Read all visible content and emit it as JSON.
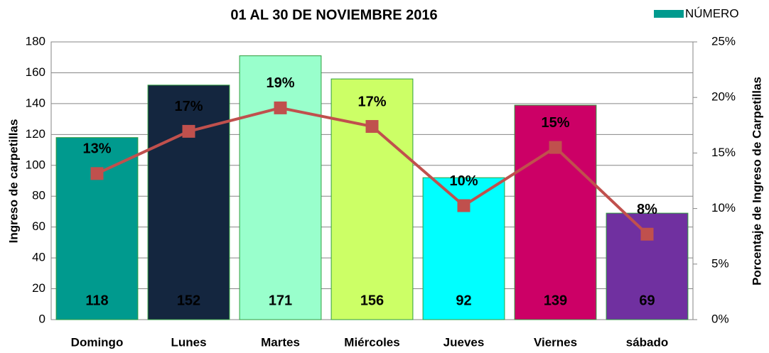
{
  "chart_data": {
    "type": "bar",
    "title": "01 AL 30 DE NOVIEMBRE 2016",
    "ylabel": "Ingreso de carpetillas",
    "y2label": "Porcentaje de Ingreso de Carpetillas",
    "categories": [
      "Domingo",
      "Lunes",
      "Martes",
      "Miércoles",
      "Jueves",
      "Viernes",
      "sábado"
    ],
    "series": [
      {
        "name": "NÚMERO",
        "type": "bar",
        "color": "#009a8e",
        "colors": [
          "#009a8e",
          "#14263f",
          "#99ffcc",
          "#ccff66",
          "#00ffff",
          "#cc0066",
          "#7030a0"
        ],
        "label_colors": [
          "#000000",
          "#ffffff",
          "#000000",
          "#000000",
          "#000000",
          "#000000",
          "#000000"
        ],
        "values": [
          118,
          152,
          171,
          156,
          92,
          139,
          69
        ]
      },
      {
        "type": "line",
        "axis": "y2",
        "color": "#c0504d",
        "values": [
          13.15,
          16.95,
          19.06,
          17.39,
          10.26,
          15.5,
          7.69
        ],
        "value_labels": [
          "13%",
          "17%",
          "19%",
          "17%",
          "10%",
          "15%",
          "8%"
        ],
        "label_colors": [
          "#000000",
          "#ffffff",
          "#000000",
          "#000000",
          "#000000",
          "#000000",
          "#000000"
        ]
      }
    ],
    "ylim": [
      0,
      180
    ],
    "yticks": [
      0,
      20,
      40,
      60,
      80,
      100,
      120,
      140,
      160,
      180
    ],
    "y2lim": [
      0,
      25
    ],
    "y2ticks": [
      {
        "value": 0,
        "label": "0%"
      },
      {
        "value": 5,
        "label": "5%"
      },
      {
        "value": 10,
        "label": "10%"
      },
      {
        "value": 15,
        "label": "15%"
      },
      {
        "value": 20,
        "label": "20%"
      },
      {
        "value": 25,
        "label": "25%"
      }
    ],
    "grid": true,
    "legend": "top-right"
  }
}
